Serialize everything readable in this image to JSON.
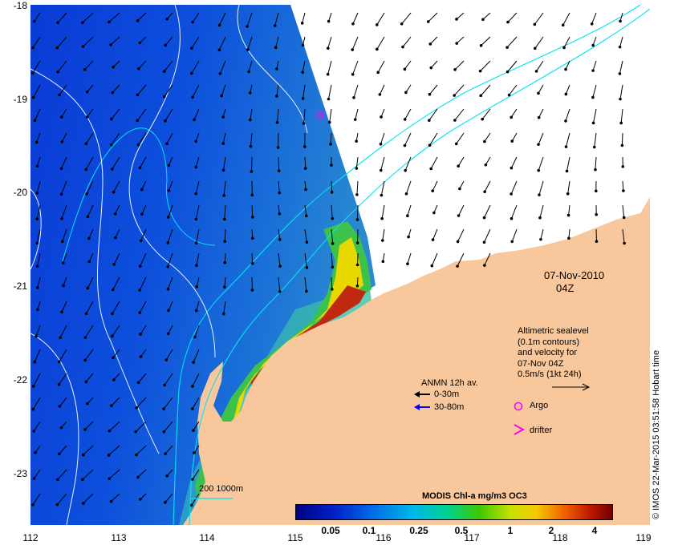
{
  "map": {
    "lon_ticks": [
      "112",
      "113",
      "114",
      "115",
      "116",
      "117",
      "118",
      "119"
    ],
    "lat_ticks": [
      "-18",
      "-19",
      "-20",
      "-21",
      "-22",
      "-23"
    ],
    "date_label": "07-Nov-2010",
    "time_label": "04Z",
    "credit": "© IMOS 22-Mar-2015 03:51:58 Hobart time"
  },
  "legend": {
    "altimetry_lines": [
      "Altimetric sealevel",
      "(0.1m contours)",
      "and velocity for",
      "07-Nov 04Z",
      "0.5m/s (1kt 24h)"
    ],
    "anmn_title": "ANMN 12h av.",
    "anmn_shallow": "0-30m",
    "anmn_deep": "30-80m",
    "argo": "Argo",
    "drifter": "drifter",
    "isobaths": "200  1000m"
  },
  "colorbar": {
    "title": "MODIS Chl-a mg/m3 OC3",
    "ticks": [
      "0.05",
      "0.1",
      "0.25",
      "0.5",
      "1",
      "2",
      "4"
    ]
  },
  "colors": {
    "land": "#f8c89c",
    "isobath": "#00e5ee",
    "contour": "#ffffff",
    "argo": "#ff00ff",
    "anmn_deep": "#0000ff"
  }
}
